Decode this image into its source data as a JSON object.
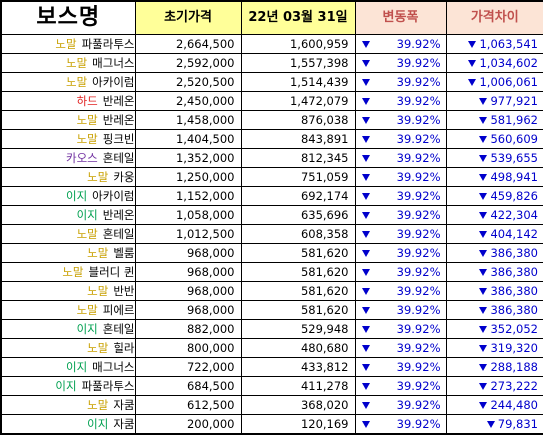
{
  "header": {
    "boss": "보스명",
    "initial_price": "초기가격",
    "date": "22년 03월 31일",
    "change": "변동폭",
    "price_diff": "가격차이"
  },
  "colors": {
    "노말": "#c8a000",
    "하드": "#e02020",
    "카오스": "#7030a0",
    "이지": "#00a050",
    "down": "#0000cc"
  },
  "rows": [
    {
      "diff": "노말",
      "boss": "파풀라투스",
      "initial": "2,664,500",
      "current": "1,600,959",
      "change": "39.92%",
      "gap": "1,063,541"
    },
    {
      "diff": "노말",
      "boss": "매그너스",
      "initial": "2,592,000",
      "current": "1,557,398",
      "change": "39.92%",
      "gap": "1,034,602"
    },
    {
      "diff": "노말",
      "boss": "아카이럼",
      "initial": "2,520,500",
      "current": "1,514,439",
      "change": "39.92%",
      "gap": "1,006,061"
    },
    {
      "diff": "하드",
      "boss": "반레온",
      "initial": "2,450,000",
      "current": "1,472,079",
      "change": "39.92%",
      "gap": "977,921"
    },
    {
      "diff": "노말",
      "boss": "반레온",
      "initial": "1,458,000",
      "current": "876,038",
      "change": "39.92%",
      "gap": "581,962"
    },
    {
      "diff": "노말",
      "boss": "핑크빈",
      "initial": "1,404,500",
      "current": "843,891",
      "change": "39.92%",
      "gap": "560,609"
    },
    {
      "diff": "카오스",
      "boss": "혼테일",
      "initial": "1,352,000",
      "current": "812,345",
      "change": "39.92%",
      "gap": "539,655"
    },
    {
      "diff": "노말",
      "boss": "카웅",
      "initial": "1,250,000",
      "current": "751,059",
      "change": "39.92%",
      "gap": "498,941"
    },
    {
      "diff": "이지",
      "boss": "아카이럼",
      "initial": "1,152,000",
      "current": "692,174",
      "change": "39.92%",
      "gap": "459,826"
    },
    {
      "diff": "이지",
      "boss": "반레온",
      "initial": "1,058,000",
      "current": "635,696",
      "change": "39.92%",
      "gap": "422,304"
    },
    {
      "diff": "노말",
      "boss": "혼테일",
      "initial": "1,012,500",
      "current": "608,358",
      "change": "39.92%",
      "gap": "404,142"
    },
    {
      "diff": "노말",
      "boss": "벨룸",
      "initial": "968,000",
      "current": "581,620",
      "change": "39.92%",
      "gap": "386,380"
    },
    {
      "diff": "노말",
      "boss": "블러디 퀸",
      "initial": "968,000",
      "current": "581,620",
      "change": "39.92%",
      "gap": "386,380"
    },
    {
      "diff": "노말",
      "boss": "반반",
      "initial": "968,000",
      "current": "581,620",
      "change": "39.92%",
      "gap": "386,380"
    },
    {
      "diff": "노말",
      "boss": "피에르",
      "initial": "968,000",
      "current": "581,620",
      "change": "39.92%",
      "gap": "386,380"
    },
    {
      "diff": "이지",
      "boss": "혼테일",
      "initial": "882,000",
      "current": "529,948",
      "change": "39.92%",
      "gap": "352,052"
    },
    {
      "diff": "노말",
      "boss": "힐라",
      "initial": "800,000",
      "current": "480,680",
      "change": "39.92%",
      "gap": "319,320"
    },
    {
      "diff": "이지",
      "boss": "매그너스",
      "initial": "722,000",
      "current": "433,812",
      "change": "39.92%",
      "gap": "288,188"
    },
    {
      "diff": "이지",
      "boss": "파풀라투스",
      "initial": "684,500",
      "current": "411,278",
      "change": "39.92%",
      "gap": "273,222"
    },
    {
      "diff": "노말",
      "boss": "자쿰",
      "initial": "612,500",
      "current": "368,020",
      "change": "39.92%",
      "gap": "244,480"
    },
    {
      "diff": "이지",
      "boss": "자쿰",
      "initial": "200,000",
      "current": "120,169",
      "change": "39.92%",
      "gap": "79,831"
    }
  ]
}
